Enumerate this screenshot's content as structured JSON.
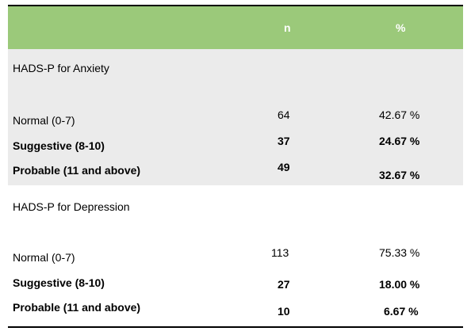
{
  "header": {
    "col_n": "n",
    "col_pct": "%",
    "bg_color": "#9bc97a"
  },
  "anxiety": {
    "title": "HADS-P for Anxiety",
    "rows": [
      {
        "label": "Normal (0-7)",
        "n": "64",
        "pct": "42.67 %"
      },
      {
        "label": "Suggestive (8-10)",
        "n": "37",
        "pct": "24.67 %"
      },
      {
        "label": "Probable (11 and above)",
        "n": "49",
        "pct": "32.67 %"
      }
    ]
  },
  "depression": {
    "title": "HADS-P for Depression",
    "rows": [
      {
        "label": "Normal (0-7)",
        "n": "113",
        "pct": "75.33 %"
      },
      {
        "label": "Suggestive (8-10)",
        "n": "27",
        "pct": "18.00 %"
      },
      {
        "label": "Probable (11 and above)",
        "n": "10",
        "pct": "6.67 %"
      }
    ]
  }
}
